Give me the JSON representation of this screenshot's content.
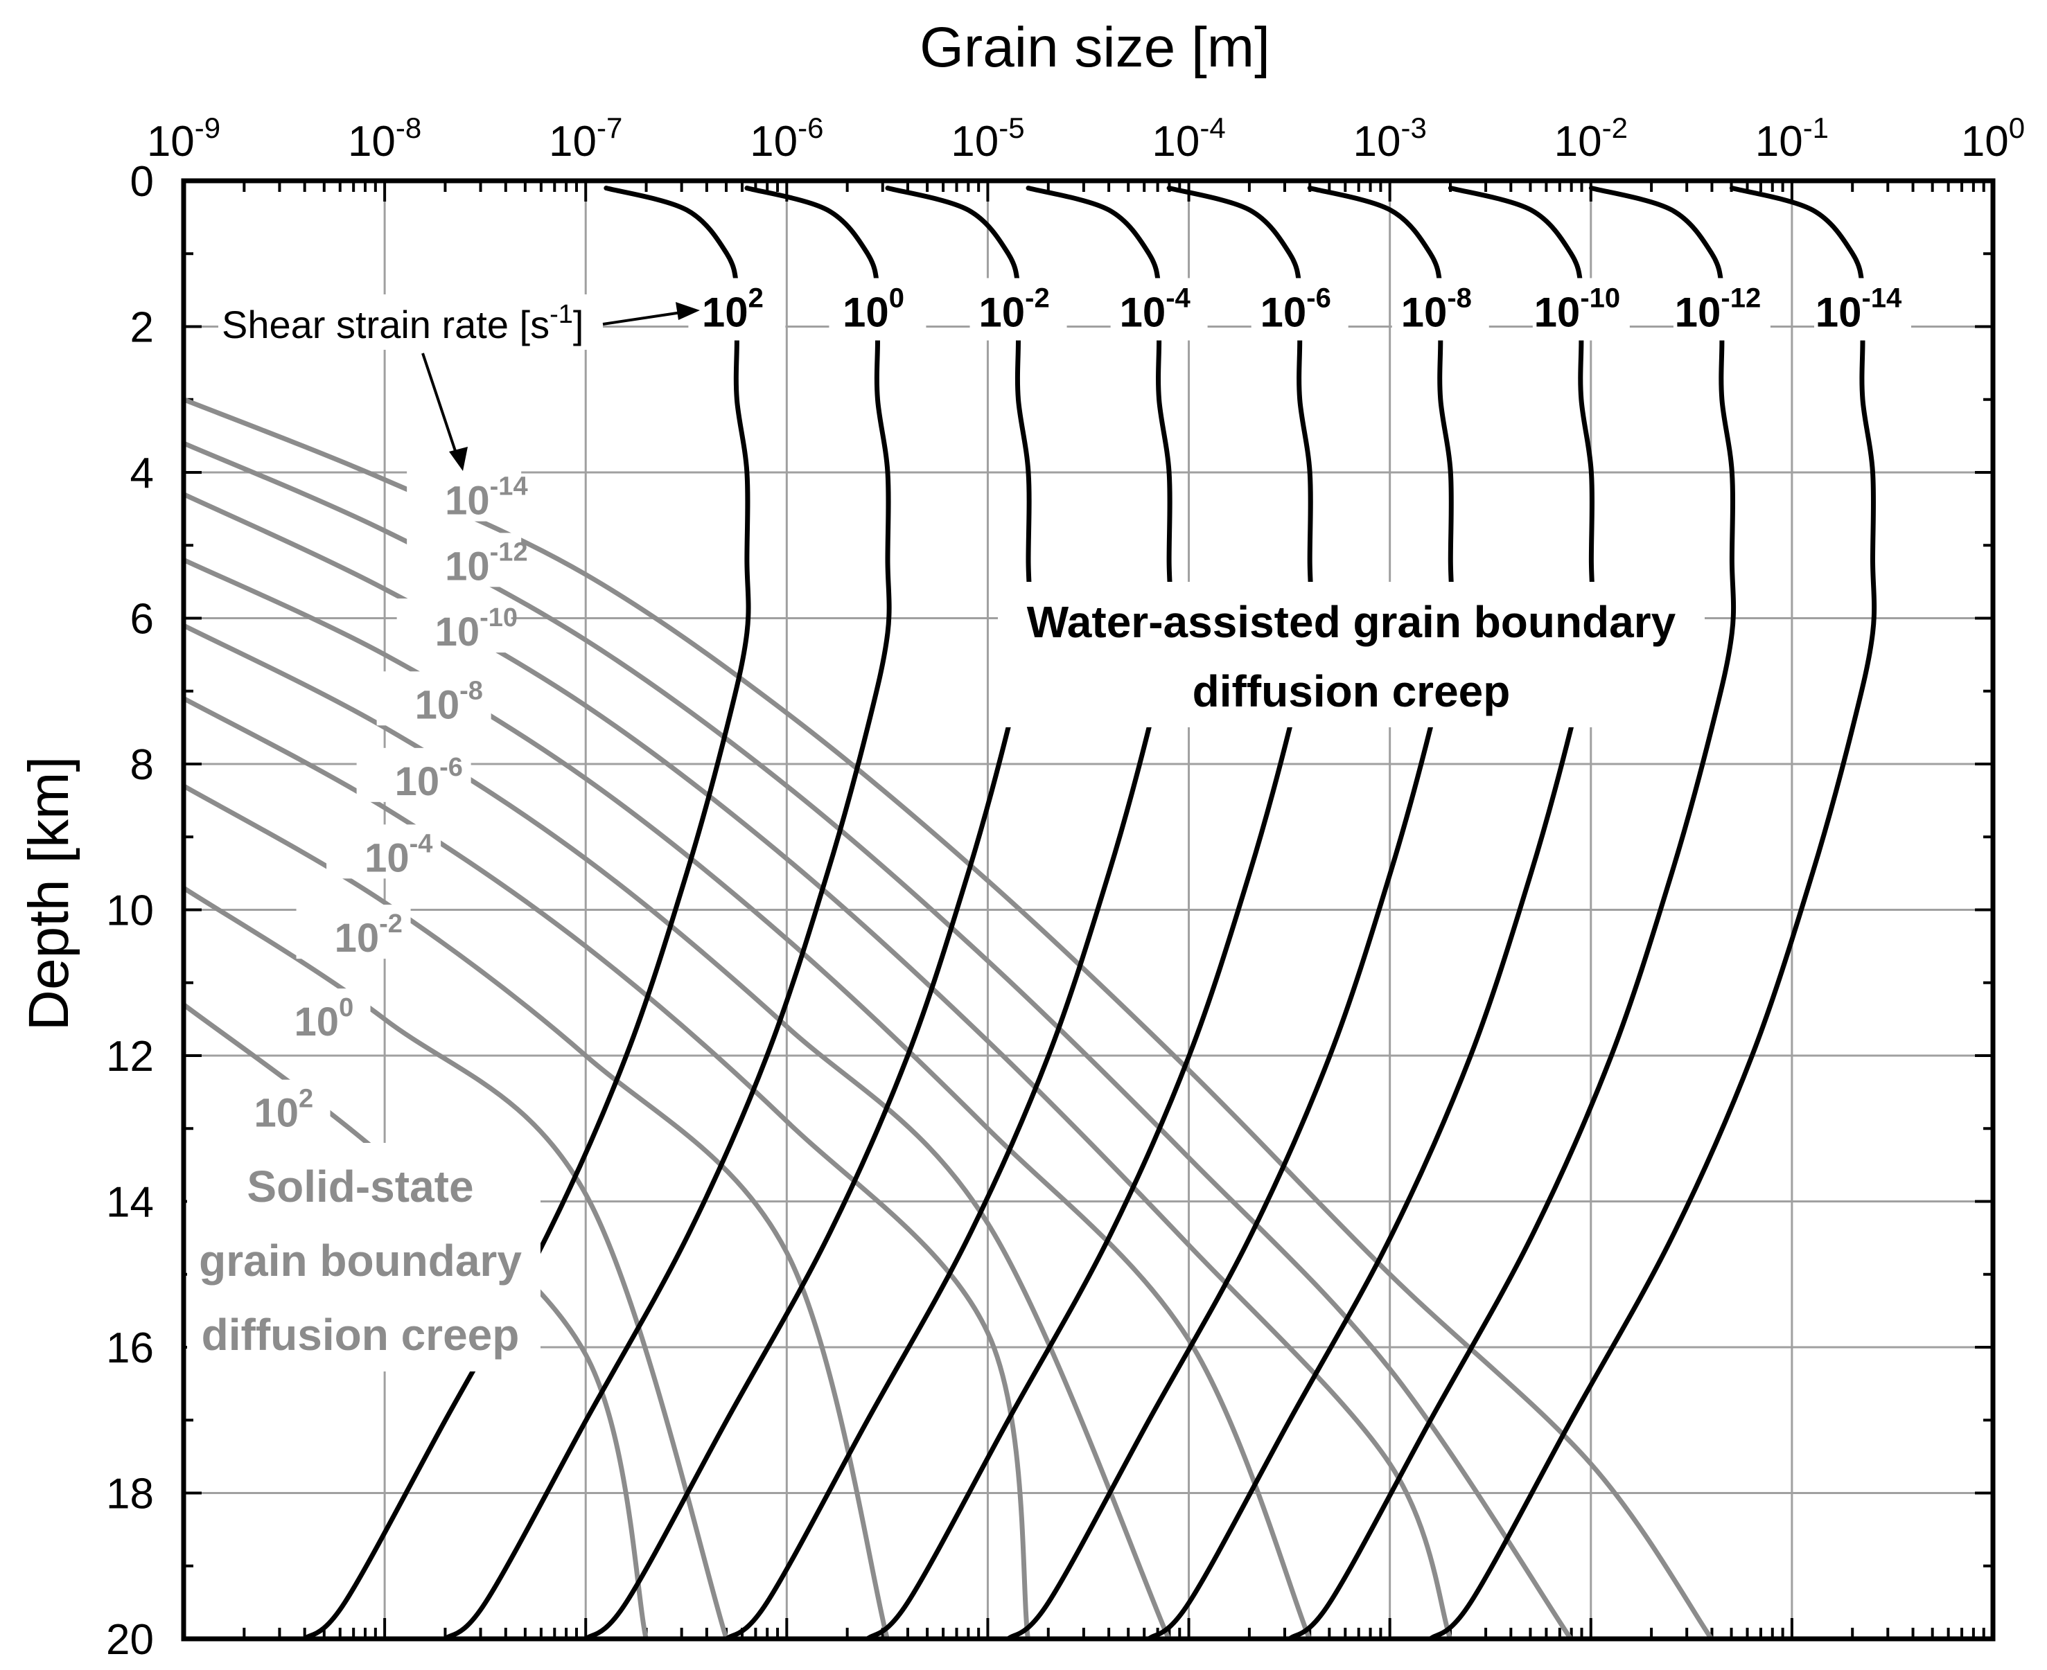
{
  "chart_data": {
    "type": "line",
    "x_scale": "log",
    "y_inverted": true,
    "grid": true,
    "xlim": [
      "1e-9",
      "1e0"
    ],
    "ylim": [
      0,
      20
    ],
    "xlabel": "Grain size [m]",
    "ylabel": "Depth [km]",
    "x_ticks": [
      {
        "base": "10",
        "exp": "-9"
      },
      {
        "base": "10",
        "exp": "-8"
      },
      {
        "base": "10",
        "exp": "-7"
      },
      {
        "base": "10",
        "exp": "-6"
      },
      {
        "base": "10",
        "exp": "-5"
      },
      {
        "base": "10",
        "exp": "-4"
      },
      {
        "base": "10",
        "exp": "-3"
      },
      {
        "base": "10",
        "exp": "-2"
      },
      {
        "base": "10",
        "exp": "-1"
      },
      {
        "base": "10",
        "exp": "0"
      }
    ],
    "y_ticks": [
      "0",
      "2",
      "4",
      "6",
      "8",
      "10",
      "12",
      "14",
      "16",
      "18",
      "20"
    ],
    "annotation_strain_rate": {
      "text": "Shear strain rate [s",
      "exp": "-1",
      "tail": "]"
    },
    "water_label": [
      "Water-assisted grain boundary",
      "diffusion creep"
    ],
    "solid_label": [
      "Solid-state",
      "grain boundary",
      "diffusion creep"
    ],
    "colors": {
      "water": "#000000",
      "solid": "#8c8c8c",
      "grid": "#a0a0a0"
    },
    "water_series": [
      {
        "name": "10^2",
        "base": "10",
        "exp": "2",
        "points": [
          [
            -6.898,
            0.1
          ],
          [
            -6.498,
            0.4
          ],
          [
            -6.298,
            1.0
          ],
          [
            -6.248,
            1.5
          ],
          [
            -6.248,
            2.2
          ],
          [
            -6.248,
            3.0
          ],
          [
            -6.198,
            4.0
          ],
          [
            -6.198,
            5.2
          ],
          [
            -6.198,
            6.2
          ],
          [
            -6.298,
            7.5
          ],
          [
            -6.498,
            9.5
          ],
          [
            -6.798,
            12.0
          ],
          [
            -7.198,
            14.5
          ],
          [
            -7.698,
            17.0
          ],
          [
            -8.198,
            19.5
          ],
          [
            -8.398,
            20.0
          ]
        ]
      },
      {
        "name": "10^0",
        "base": "10",
        "exp": "0",
        "points": [
          [
            -6.198,
            0.1
          ],
          [
            -5.798,
            0.4
          ],
          [
            -5.598,
            1.0
          ],
          [
            -5.548,
            1.5
          ],
          [
            -5.548,
            2.2
          ],
          [
            -5.548,
            3.0
          ],
          [
            -5.498,
            4.0
          ],
          [
            -5.498,
            5.2
          ],
          [
            -5.498,
            6.2
          ],
          [
            -5.598,
            7.5
          ],
          [
            -5.798,
            9.5
          ],
          [
            -6.098,
            12.0
          ],
          [
            -6.498,
            14.5
          ],
          [
            -6.998,
            17.0
          ],
          [
            -7.498,
            19.5
          ],
          [
            -7.698,
            20.0
          ]
        ]
      },
      {
        "name": "10^-2",
        "base": "10",
        "exp": "-2",
        "points": [
          [
            -5.498,
            0.1
          ],
          [
            -5.098,
            0.4
          ],
          [
            -4.898,
            1.0
          ],
          [
            -4.848,
            1.5
          ],
          [
            -4.848,
            2.2
          ],
          [
            -4.848,
            3.0
          ],
          [
            -4.798,
            4.0
          ],
          [
            -4.798,
            5.2
          ],
          [
            -4.798,
            6.2
          ],
          [
            -4.898,
            7.5
          ],
          [
            -5.098,
            9.5
          ],
          [
            -5.398,
            12.0
          ],
          [
            -5.798,
            14.5
          ],
          [
            -6.298,
            17.0
          ],
          [
            -6.798,
            19.5
          ],
          [
            -6.998,
            20.0
          ]
        ]
      },
      {
        "name": "10^-4",
        "base": "10",
        "exp": "-4",
        "points": [
          [
            -4.798,
            0.1
          ],
          [
            -4.398,
            0.4
          ],
          [
            -4.198,
            1.0
          ],
          [
            -4.148,
            1.5
          ],
          [
            -4.148,
            2.2
          ],
          [
            -4.148,
            3.0
          ],
          [
            -4.098,
            4.0
          ],
          [
            -4.098,
            5.2
          ],
          [
            -4.098,
            6.2
          ],
          [
            -4.198,
            7.5
          ],
          [
            -4.398,
            9.5
          ],
          [
            -4.698,
            12.0
          ],
          [
            -5.098,
            14.5
          ],
          [
            -5.598,
            17.0
          ],
          [
            -6.098,
            19.5
          ],
          [
            -6.298,
            20.0
          ]
        ]
      },
      {
        "name": "10^-6",
        "base": "10",
        "exp": "-6",
        "points": [
          [
            -4.098,
            0.1
          ],
          [
            -3.698,
            0.4
          ],
          [
            -3.498,
            1.0
          ],
          [
            -3.448,
            1.5
          ],
          [
            -3.448,
            2.2
          ],
          [
            -3.448,
            3.0
          ],
          [
            -3.398,
            4.0
          ],
          [
            -3.398,
            5.2
          ],
          [
            -3.398,
            6.2
          ],
          [
            -3.498,
            7.5
          ],
          [
            -3.698,
            9.5
          ],
          [
            -3.998,
            12.0
          ],
          [
            -4.398,
            14.5
          ],
          [
            -4.898,
            17.0
          ],
          [
            -5.398,
            19.5
          ],
          [
            -5.598,
            20.0
          ]
        ]
      },
      {
        "name": "10^-8",
        "base": "10",
        "exp": "-8",
        "points": [
          [
            -3.398,
            0.1
          ],
          [
            -2.998,
            0.4
          ],
          [
            -2.798,
            1.0
          ],
          [
            -2.748,
            1.5
          ],
          [
            -2.748,
            2.2
          ],
          [
            -2.748,
            3.0
          ],
          [
            -2.698,
            4.0
          ],
          [
            -2.698,
            5.2
          ],
          [
            -2.698,
            6.2
          ],
          [
            -2.798,
            7.5
          ],
          [
            -2.998,
            9.5
          ],
          [
            -3.298,
            12.0
          ],
          [
            -3.698,
            14.5
          ],
          [
            -4.198,
            17.0
          ],
          [
            -4.698,
            19.5
          ],
          [
            -4.898,
            20.0
          ]
        ]
      },
      {
        "name": "10^-10",
        "base": "10",
        "exp": "-10",
        "points": [
          [
            -2.698,
            0.1
          ],
          [
            -2.298,
            0.4
          ],
          [
            -2.098,
            1.0
          ],
          [
            -2.048,
            1.5
          ],
          [
            -2.048,
            2.2
          ],
          [
            -2.048,
            3.0
          ],
          [
            -1.998,
            4.0
          ],
          [
            -1.998,
            5.2
          ],
          [
            -1.998,
            6.2
          ],
          [
            -2.098,
            7.5
          ],
          [
            -2.298,
            9.5
          ],
          [
            -2.598,
            12.0
          ],
          [
            -2.998,
            14.5
          ],
          [
            -3.498,
            17.0
          ],
          [
            -3.998,
            19.5
          ],
          [
            -4.198,
            20.0
          ]
        ]
      },
      {
        "name": "10^-12",
        "base": "10",
        "exp": "-12",
        "points": [
          [
            -1.998,
            0.1
          ],
          [
            -1.598,
            0.4
          ],
          [
            -1.398,
            1.0
          ],
          [
            -1.348,
            1.5
          ],
          [
            -1.348,
            2.2
          ],
          [
            -1.348,
            3.0
          ],
          [
            -1.298,
            4.0
          ],
          [
            -1.298,
            5.2
          ],
          [
            -1.298,
            6.2
          ],
          [
            -1.398,
            7.5
          ],
          [
            -1.598,
            9.5
          ],
          [
            -1.898,
            12.0
          ],
          [
            -2.298,
            14.5
          ],
          [
            -2.798,
            17.0
          ],
          [
            -3.298,
            19.5
          ],
          [
            -3.498,
            20.0
          ]
        ]
      },
      {
        "name": "10^-14",
        "base": "10",
        "exp": "-14",
        "points": [
          [
            -1.298,
            0.1
          ],
          [
            -0.898,
            0.4
          ],
          [
            -0.698,
            1.0
          ],
          [
            -0.648,
            1.5
          ],
          [
            -0.648,
            2.2
          ],
          [
            -0.648,
            3.0
          ],
          [
            -0.598,
            4.0
          ],
          [
            -0.598,
            5.2
          ],
          [
            -0.598,
            6.2
          ],
          [
            -0.698,
            7.5
          ],
          [
            -0.898,
            9.5
          ],
          [
            -1.198,
            12.0
          ],
          [
            -1.598,
            14.5
          ],
          [
            -2.098,
            17.0
          ],
          [
            -2.598,
            19.5
          ],
          [
            -2.798,
            20.0
          ]
        ]
      }
    ],
    "solid_series": [
      {
        "name": "10^-14",
        "base": "10",
        "exp": "-14",
        "points": [
          [
            -9.0,
            3.0
          ],
          [
            -8.0,
            4.1
          ],
          [
            -7.0,
            5.4
          ],
          [
            -6.0,
            7.3
          ],
          [
            -5.0,
            9.6
          ],
          [
            -4.0,
            12.2
          ],
          [
            -3.0,
            15.0
          ],
          [
            -2.0,
            17.6
          ],
          [
            -1.4,
            20.0
          ]
        ]
      },
      {
        "name": "10^-12",
        "base": "10",
        "exp": "-12",
        "points": [
          [
            -9.0,
            3.6
          ],
          [
            -8.0,
            4.8
          ],
          [
            -7.0,
            6.3
          ],
          [
            -6.0,
            8.3
          ],
          [
            -5.0,
            10.7
          ],
          [
            -4.0,
            13.4
          ],
          [
            -3.0,
            16.3
          ],
          [
            -2.1,
            20.0
          ]
        ]
      },
      {
        "name": "10^-10",
        "base": "10",
        "exp": "-10",
        "points": [
          [
            -9.0,
            4.3
          ],
          [
            -8.0,
            5.6
          ],
          [
            -7.0,
            7.2
          ],
          [
            -6.0,
            9.3
          ],
          [
            -5.0,
            11.8
          ],
          [
            -4.0,
            14.6
          ],
          [
            -3.0,
            17.6
          ],
          [
            -2.7,
            20.0
          ]
        ]
      },
      {
        "name": "10^-8",
        "base": "10",
        "exp": "-8",
        "points": [
          [
            -9.0,
            5.2
          ],
          [
            -8.0,
            6.5
          ],
          [
            -7.0,
            8.2
          ],
          [
            -6.0,
            10.4
          ],
          [
            -5.0,
            13.0
          ],
          [
            -4.0,
            15.9
          ],
          [
            -3.4,
            20.0
          ]
        ]
      },
      {
        "name": "10^-6",
        "base": "10",
        "exp": "-6",
        "points": [
          [
            -9.0,
            6.1
          ],
          [
            -8.0,
            7.5
          ],
          [
            -7.0,
            9.3
          ],
          [
            -6.0,
            11.6
          ],
          [
            -5.0,
            14.3
          ],
          [
            -4.1,
            20.0
          ]
        ]
      },
      {
        "name": "10^-4",
        "base": "10",
        "exp": "-4",
        "points": [
          [
            -9.0,
            7.1
          ],
          [
            -8.0,
            8.6
          ],
          [
            -7.0,
            10.5
          ],
          [
            -6.0,
            12.9
          ],
          [
            -5.0,
            15.8
          ],
          [
            -4.8,
            20.0
          ]
        ]
      },
      {
        "name": "10^-2",
        "base": "10",
        "exp": "-2",
        "points": [
          [
            -9.0,
            8.3
          ],
          [
            -8.0,
            9.9
          ],
          [
            -7.0,
            12.0
          ],
          [
            -6.0,
            14.7
          ],
          [
            -5.5,
            20.0
          ]
        ]
      },
      {
        "name": "10^0",
        "base": "10",
        "exp": "0",
        "points": [
          [
            -9.0,
            9.7
          ],
          [
            -8.0,
            11.5
          ],
          [
            -7.0,
            13.9
          ],
          [
            -6.3,
            20.0
          ]
        ]
      },
      {
        "name": "10^2",
        "base": "10",
        "exp": "2",
        "points": [
          [
            -9.0,
            11.3
          ],
          [
            -8.0,
            13.4
          ],
          [
            -7.0,
            16.1
          ],
          [
            -6.7,
            20.0
          ]
        ]
      }
    ]
  }
}
